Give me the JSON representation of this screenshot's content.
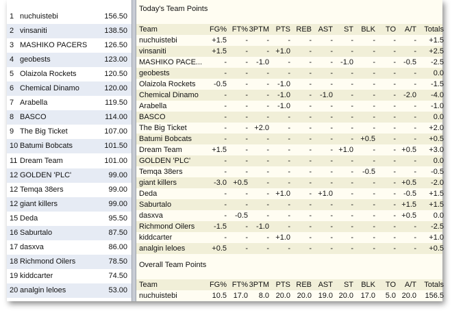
{
  "standings": {
    "rows": [
      [
        "1",
        "nuchuistebi",
        "156.50"
      ],
      [
        "2",
        "vinsaniti",
        "138.50"
      ],
      [
        "3",
        "MASHIKO PACERS",
        "126.50"
      ],
      [
        "4",
        "geobests",
        "123.00"
      ],
      [
        "5",
        "Olaizola Rockets",
        "120.50"
      ],
      [
        "6",
        "Chemical Dinamo",
        "120.00"
      ],
      [
        "7",
        "Arabella",
        "119.50"
      ],
      [
        "8",
        "BASCO",
        "114.00"
      ],
      [
        "9",
        "The Big Ticket",
        "107.00"
      ],
      [
        "10",
        "Batumi Bobcats",
        "101.50"
      ],
      [
        "11",
        "Dream Team",
        "101.00"
      ],
      [
        "12",
        "GOLDEN 'PLC'",
        "99.00"
      ],
      [
        "12",
        "Temqa 38ers",
        "99.00"
      ],
      [
        "12",
        "giant killers",
        "99.00"
      ],
      [
        "15",
        "Deda",
        "95.50"
      ],
      [
        "16",
        "Saburtalo",
        "87.50"
      ],
      [
        "17",
        "dasxva",
        "86.00"
      ],
      [
        "18",
        "Richmond Oilers",
        "78.50"
      ],
      [
        "19",
        "kiddcarter",
        "74.50"
      ],
      [
        "20",
        "analgin leloes",
        "53.00"
      ]
    ]
  },
  "today": {
    "title": "Today's Team Points",
    "columns": [
      "Team",
      "FG%",
      "FT%",
      "3PTM",
      "PTS",
      "REB",
      "AST",
      "ST",
      "BLK",
      "TO",
      "A/T",
      "Totals"
    ],
    "rows": [
      [
        "nuchuistebi",
        "+1.5",
        "-",
        "-",
        "-",
        "-",
        "-",
        "-",
        "-",
        "-",
        "-",
        "+1.5"
      ],
      [
        "vinsaniti",
        "+1.5",
        "-",
        "-",
        "+1.0",
        "-",
        "-",
        "-",
        "-",
        "-",
        "-",
        "+2.5"
      ],
      [
        "MASHIKO PACE...",
        "-",
        "-",
        "-1.0",
        "-",
        "-",
        "-",
        "-1.0",
        "-",
        "-",
        "-0.5",
        "-2.5"
      ],
      [
        "geobests",
        "-",
        "-",
        "-",
        "-",
        "-",
        "-",
        "-",
        "-",
        "-",
        "-",
        "0.0"
      ],
      [
        "Olaizola Rockets",
        "-0.5",
        "-",
        "-",
        "-1.0",
        "-",
        "-",
        "-",
        "-",
        "-",
        "-",
        "-1.5"
      ],
      [
        "Chemical Dinamo",
        "-",
        "-",
        "-",
        "-1.0",
        "-",
        "-1.0",
        "-",
        "-",
        "-",
        "-2.0",
        "-4.0"
      ],
      [
        "Arabella",
        "-",
        "-",
        "-",
        "-1.0",
        "-",
        "-",
        "-",
        "-",
        "-",
        "-",
        "-1.0"
      ],
      [
        "BASCO",
        "-",
        "-",
        "-",
        "-",
        "-",
        "-",
        "-",
        "-",
        "-",
        "-",
        "0.0"
      ],
      [
        "The Big Ticket",
        "-",
        "-",
        "+2.0",
        "-",
        "-",
        "-",
        "-",
        "-",
        "-",
        "-",
        "+2.0"
      ],
      [
        "Batumi Bobcats",
        "-",
        "-",
        "-",
        "-",
        "-",
        "-",
        "-",
        "+0.5",
        "-",
        "-",
        "+0.5"
      ],
      [
        "Dream Team",
        "+1.5",
        "-",
        "-",
        "-",
        "-",
        "-",
        "+1.0",
        "-",
        "-",
        "+0.5",
        "+3.0"
      ],
      [
        "GOLDEN 'PLC'",
        "-",
        "-",
        "-",
        "-",
        "-",
        "-",
        "-",
        "-",
        "-",
        "-",
        "0.0"
      ],
      [
        "Temqa 38ers",
        "-",
        "-",
        "-",
        "-",
        "-",
        "-",
        "-",
        "-0.5",
        "-",
        "-",
        "-0.5"
      ],
      [
        "giant killers",
        "-3.0",
        "+0.5",
        "-",
        "-",
        "-",
        "-",
        "-",
        "-",
        "-",
        "+0.5",
        "-2.0"
      ],
      [
        "Deda",
        "-",
        "-",
        "-",
        "+1.0",
        "-",
        "+1.0",
        "-",
        "-",
        "-",
        "-0.5",
        "+1.5"
      ],
      [
        "Saburtalo",
        "-",
        "-",
        "-",
        "-",
        "-",
        "-",
        "-",
        "-",
        "-",
        "+1.5",
        "+1.5"
      ],
      [
        "dasxva",
        "-",
        "-0.5",
        "-",
        "-",
        "-",
        "-",
        "-",
        "-",
        "-",
        "+0.5",
        "0.0"
      ],
      [
        "Richmond Oilers",
        "-1.5",
        "-",
        "-1.0",
        "-",
        "-",
        "-",
        "-",
        "-",
        "-",
        "-",
        "-2.5"
      ],
      [
        "kiddcarter",
        "-",
        "-",
        "-",
        "+1.0",
        "-",
        "-",
        "-",
        "-",
        "-",
        "-",
        "+1.0"
      ],
      [
        "analgin leloes",
        "+0.5",
        "-",
        "-",
        "-",
        "-",
        "-",
        "-",
        "-",
        "-",
        "-",
        "+0.5"
      ]
    ]
  },
  "overall": {
    "title": "Overall Team Points",
    "columns": [
      "Team",
      "FG%",
      "FT%",
      "3PTM",
      "PTS",
      "REB",
      "AST",
      "ST",
      "BLK",
      "TO",
      "A/T",
      "Totals"
    ],
    "rows": [
      [
        "nuchuistebi",
        "10.5",
        "17.0",
        "8.0",
        "20.0",
        "20.0",
        "19.0",
        "20.0",
        "17.0",
        "5.0",
        "20.0",
        "156.5"
      ]
    ]
  }
}
